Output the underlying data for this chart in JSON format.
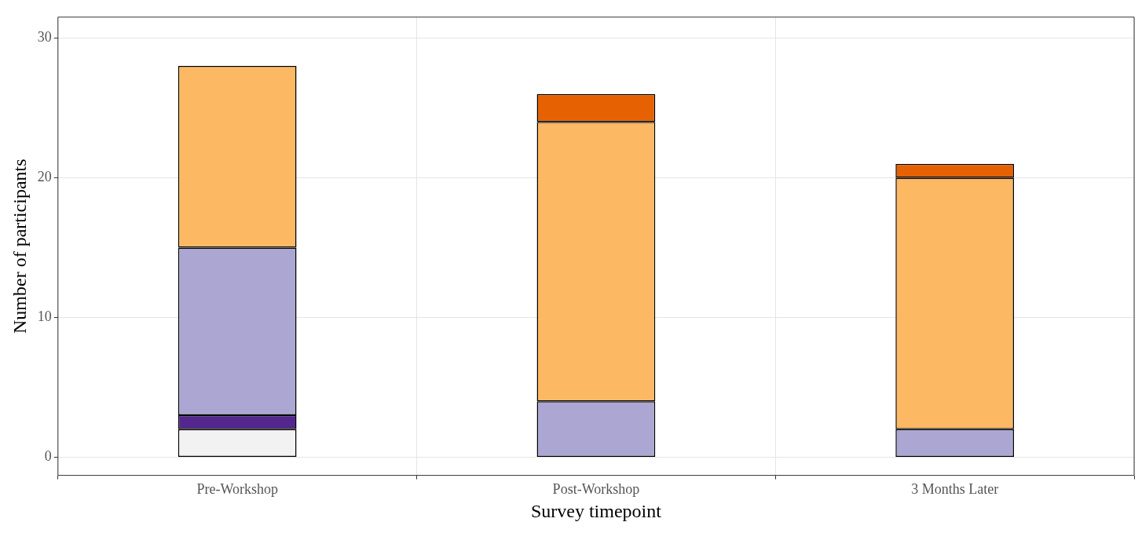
{
  "chart_data": {
    "type": "bar",
    "stacked": true,
    "xlabel": "Survey timepoint",
    "ylabel": "Number of participants",
    "categories": [
      "Pre-Workshop",
      "Post-Workshop",
      "3 Months Later"
    ],
    "series": [
      {
        "color": "#f2f2f2",
        "values": [
          2,
          null,
          null
        ]
      },
      {
        "color": "#54278f",
        "values": [
          1,
          null,
          null
        ]
      },
      {
        "color": "#aca7d2",
        "values": [
          12,
          4,
          2
        ]
      },
      {
        "color": "#fdb863",
        "values": [
          13,
          20,
          18
        ]
      },
      {
        "color": "#e66101",
        "values": [
          null,
          2,
          1
        ]
      }
    ],
    "ylim": [
      -1.3,
      31.5
    ],
    "yticks": [
      0,
      10,
      20,
      30
    ],
    "grid": true,
    "legend": false
  }
}
